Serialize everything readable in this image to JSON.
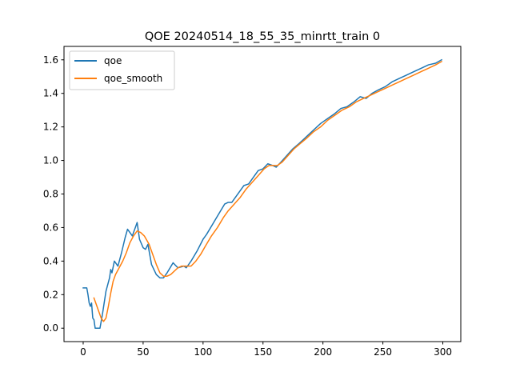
{
  "chart_data": {
    "type": "line",
    "title": "QOE 20240514_18_55_35_minrtt_train 0",
    "xlabel": "",
    "ylabel": "",
    "xlim": [
      -16,
      315
    ],
    "ylim": [
      -0.08,
      1.68
    ],
    "xticks": [
      0,
      50,
      100,
      150,
      200,
      250,
      300
    ],
    "yticks": [
      0.0,
      0.2,
      0.4,
      0.6,
      0.8,
      1.0,
      1.2,
      1.4,
      1.6
    ],
    "ytick_labels": [
      "0.0",
      "0.2",
      "0.4",
      "0.6",
      "0.8",
      "1.0",
      "1.2",
      "1.4",
      "1.6"
    ],
    "grid": false,
    "legend_position": "top-left",
    "series": [
      {
        "name": "qoe",
        "color": "#1f77b4",
        "points": [
          [
            0,
            0.24
          ],
          [
            3,
            0.24
          ],
          [
            4,
            0.2
          ],
          [
            5,
            0.15
          ],
          [
            6,
            0.13
          ],
          [
            7,
            0.15
          ],
          [
            8,
            0.06
          ],
          [
            9,
            0.05
          ],
          [
            10,
            0.0
          ],
          [
            14,
            0.0
          ],
          [
            16,
            0.08
          ],
          [
            19,
            0.22
          ],
          [
            22,
            0.3
          ],
          [
            23,
            0.35
          ],
          [
            24,
            0.33
          ],
          [
            26,
            0.4
          ],
          [
            29,
            0.37
          ],
          [
            32,
            0.45
          ],
          [
            35,
            0.54
          ],
          [
            37,
            0.59
          ],
          [
            39,
            0.57
          ],
          [
            41,
            0.55
          ],
          [
            43,
            0.59
          ],
          [
            45,
            0.63
          ],
          [
            47,
            0.53
          ],
          [
            50,
            0.48
          ],
          [
            52,
            0.47
          ],
          [
            54,
            0.5
          ],
          [
            57,
            0.38
          ],
          [
            61,
            0.32
          ],
          [
            64,
            0.3
          ],
          [
            67,
            0.3
          ],
          [
            70,
            0.33
          ],
          [
            75,
            0.39
          ],
          [
            79,
            0.36
          ],
          [
            84,
            0.37
          ],
          [
            86,
            0.36
          ],
          [
            90,
            0.4
          ],
          [
            95,
            0.46
          ],
          [
            100,
            0.53
          ],
          [
            103,
            0.56
          ],
          [
            108,
            0.62
          ],
          [
            113,
            0.68
          ],
          [
            118,
            0.74
          ],
          [
            121,
            0.75
          ],
          [
            124,
            0.75
          ],
          [
            128,
            0.79
          ],
          [
            134,
            0.85
          ],
          [
            138,
            0.86
          ],
          [
            142,
            0.9
          ],
          [
            146,
            0.94
          ],
          [
            150,
            0.95
          ],
          [
            154,
            0.98
          ],
          [
            158,
            0.97
          ],
          [
            161,
            0.96
          ],
          [
            165,
            0.99
          ],
          [
            170,
            1.03
          ],
          [
            175,
            1.07
          ],
          [
            180,
            1.1
          ],
          [
            186,
            1.14
          ],
          [
            192,
            1.18
          ],
          [
            198,
            1.22
          ],
          [
            204,
            1.25
          ],
          [
            210,
            1.28
          ],
          [
            215,
            1.31
          ],
          [
            220,
            1.32
          ],
          [
            226,
            1.35
          ],
          [
            231,
            1.38
          ],
          [
            236,
            1.37
          ],
          [
            241,
            1.4
          ],
          [
            246,
            1.42
          ],
          [
            252,
            1.44
          ],
          [
            258,
            1.47
          ],
          [
            264,
            1.49
          ],
          [
            270,
            1.51
          ],
          [
            276,
            1.53
          ],
          [
            282,
            1.55
          ],
          [
            288,
            1.57
          ],
          [
            294,
            1.58
          ],
          [
            299,
            1.6
          ]
        ]
      },
      {
        "name": "qoe_smooth",
        "color": "#ff7f0e",
        "points": [
          [
            9,
            0.18
          ],
          [
            12,
            0.12
          ],
          [
            15,
            0.06
          ],
          [
            17,
            0.04
          ],
          [
            19,
            0.06
          ],
          [
            21,
            0.13
          ],
          [
            23,
            0.21
          ],
          [
            25,
            0.28
          ],
          [
            27,
            0.32
          ],
          [
            30,
            0.36
          ],
          [
            33,
            0.4
          ],
          [
            36,
            0.45
          ],
          [
            39,
            0.51
          ],
          [
            42,
            0.55
          ],
          [
            45,
            0.58
          ],
          [
            48,
            0.57
          ],
          [
            51,
            0.55
          ],
          [
            55,
            0.5
          ],
          [
            58,
            0.44
          ],
          [
            61,
            0.38
          ],
          [
            64,
            0.33
          ],
          [
            67,
            0.31
          ],
          [
            70,
            0.31
          ],
          [
            73,
            0.32
          ],
          [
            76,
            0.34
          ],
          [
            79,
            0.36
          ],
          [
            82,
            0.37
          ],
          [
            86,
            0.37
          ],
          [
            90,
            0.37
          ],
          [
            94,
            0.4
          ],
          [
            98,
            0.44
          ],
          [
            102,
            0.49
          ],
          [
            107,
            0.55
          ],
          [
            112,
            0.6
          ],
          [
            117,
            0.66
          ],
          [
            121,
            0.7
          ],
          [
            126,
            0.74
          ],
          [
            131,
            0.78
          ],
          [
            136,
            0.83
          ],
          [
            141,
            0.87
          ],
          [
            146,
            0.91
          ],
          [
            151,
            0.95
          ],
          [
            155,
            0.97
          ],
          [
            159,
            0.97
          ],
          [
            162,
            0.97
          ],
          [
            166,
            0.99
          ],
          [
            171,
            1.03
          ],
          [
            176,
            1.07
          ],
          [
            181,
            1.1
          ],
          [
            186,
            1.13
          ],
          [
            192,
            1.17
          ],
          [
            198,
            1.2
          ],
          [
            204,
            1.24
          ],
          [
            210,
            1.27
          ],
          [
            216,
            1.3
          ],
          [
            222,
            1.32
          ],
          [
            228,
            1.35
          ],
          [
            234,
            1.37
          ],
          [
            240,
            1.39
          ],
          [
            246,
            1.41
          ],
          [
            252,
            1.43
          ],
          [
            258,
            1.45
          ],
          [
            264,
            1.47
          ],
          [
            270,
            1.49
          ],
          [
            276,
            1.51
          ],
          [
            282,
            1.53
          ],
          [
            288,
            1.55
          ],
          [
            294,
            1.57
          ],
          [
            299,
            1.59
          ]
        ]
      }
    ]
  }
}
